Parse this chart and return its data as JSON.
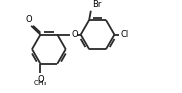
{
  "bg_color": "#ffffff",
  "line_color": "#2a2a2a",
  "text_color": "#000000",
  "lw": 1.3,
  "fig_w": 1.82,
  "fig_h": 0.93,
  "dpi": 100,
  "xlim": [
    0,
    10
  ],
  "ylim": [
    0,
    5.1
  ]
}
